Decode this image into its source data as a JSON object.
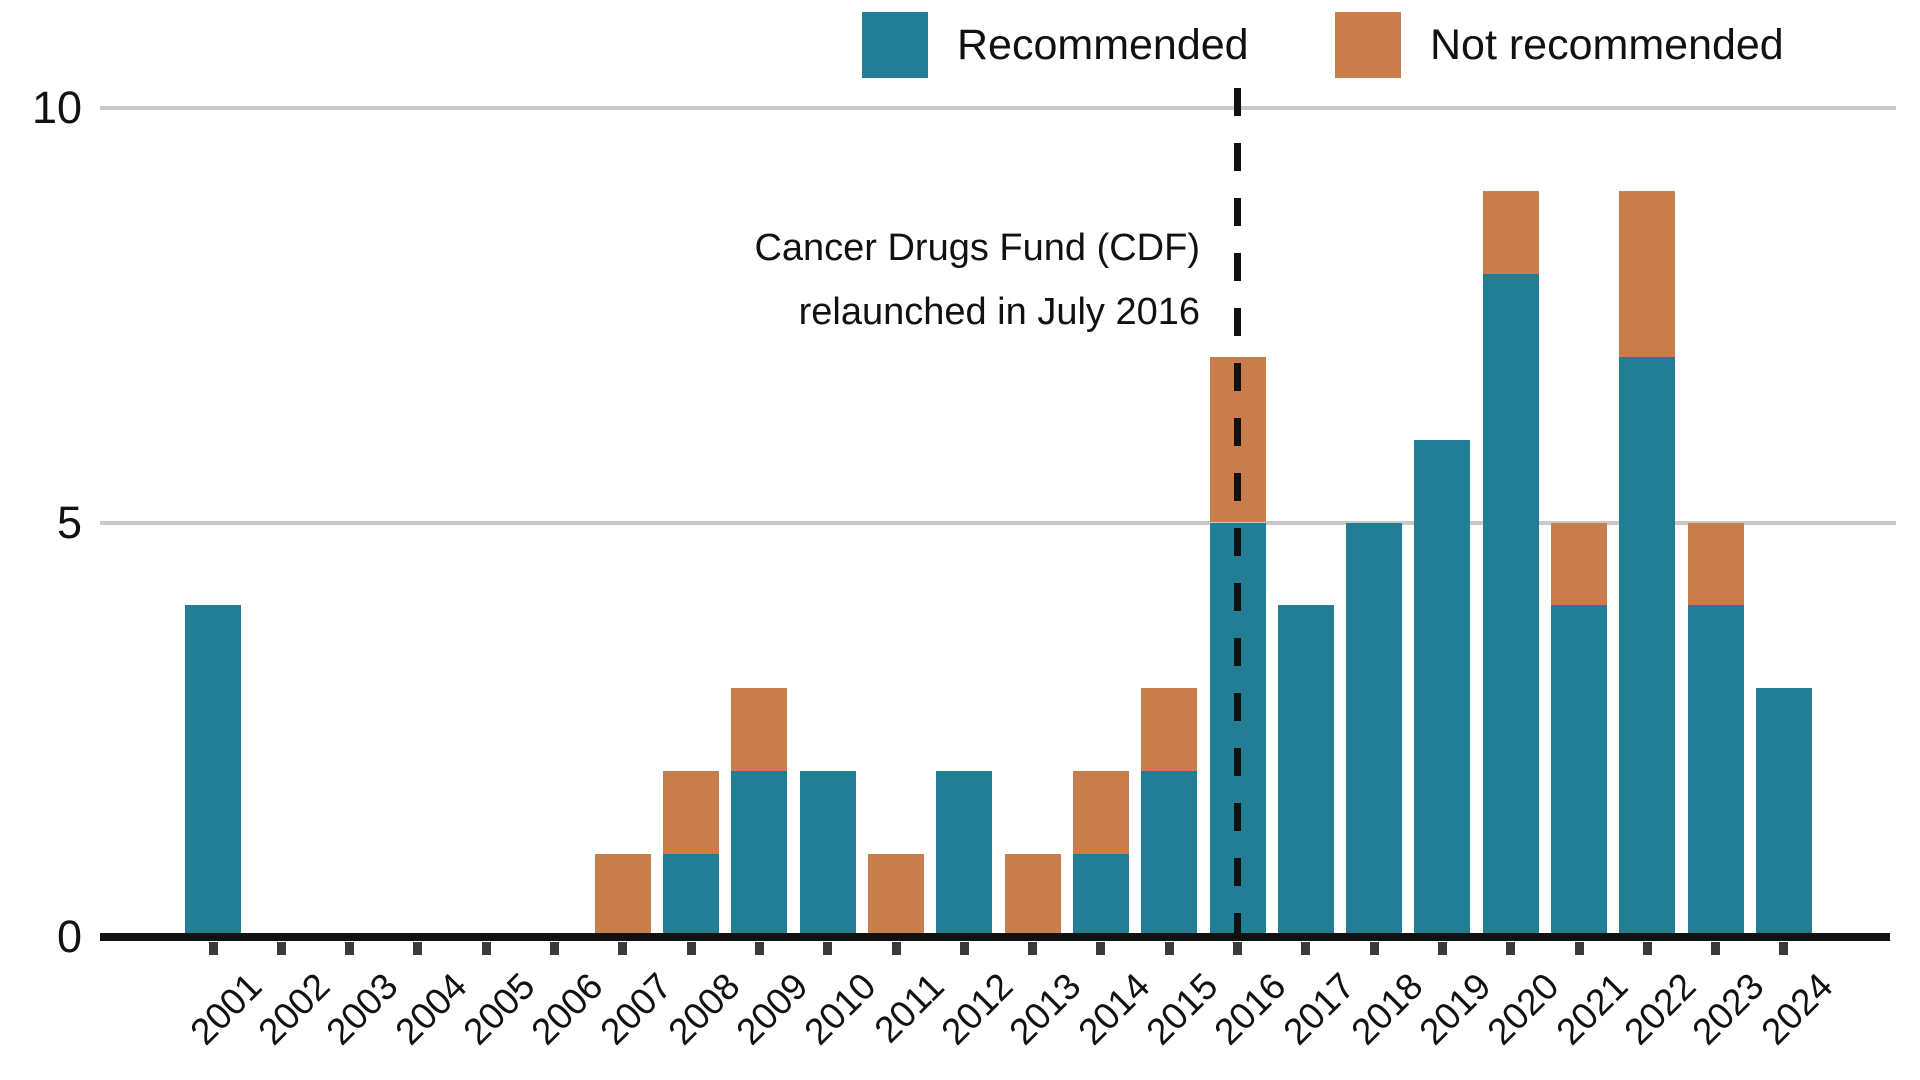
{
  "legend": {
    "items": [
      {
        "label": "Recommended",
        "color": "#237E95"
      },
      {
        "label": "Not recommended",
        "color": "#C97C4C"
      }
    ]
  },
  "annotation": {
    "line1": "Cancer Drugs Fund (CDF)",
    "line2": "relaunched in July 2016"
  },
  "chart_data": {
    "type": "bar",
    "stacked": true,
    "title": "",
    "xlabel": "",
    "ylabel": "",
    "categories": [
      "2001",
      "2002",
      "2003",
      "2004",
      "2005",
      "2006",
      "2007",
      "2008",
      "2009",
      "2010",
      "2011",
      "2012",
      "2013",
      "2014",
      "2015",
      "2016",
      "2017",
      "2018",
      "2019",
      "2020",
      "2021",
      "2022",
      "2023",
      "2024"
    ],
    "series": [
      {
        "name": "Recommended",
        "color": "#237E95",
        "values": [
          4,
          0,
          0,
          0,
          0,
          0,
          0,
          1,
          2,
          2,
          0,
          2,
          0,
          1,
          2,
          5,
          4,
          5,
          6,
          8,
          4,
          7,
          4,
          3
        ]
      },
      {
        "name": "Not recommended",
        "color": "#C97C4C",
        "values": [
          0,
          0,
          0,
          0,
          0,
          0,
          1,
          1,
          1,
          0,
          1,
          0,
          1,
          1,
          1,
          2,
          0,
          0,
          0,
          1,
          1,
          2,
          1,
          0
        ]
      }
    ],
    "ylim": [
      0,
      10
    ],
    "yticks": [
      0,
      5,
      10
    ],
    "grid": "horizontal",
    "legend_position": "top",
    "reference_line": {
      "x": "2016",
      "style": "dashed",
      "color": "#111111",
      "label": "Cancer Drugs Fund (CDF) relaunched in July 2016"
    }
  }
}
